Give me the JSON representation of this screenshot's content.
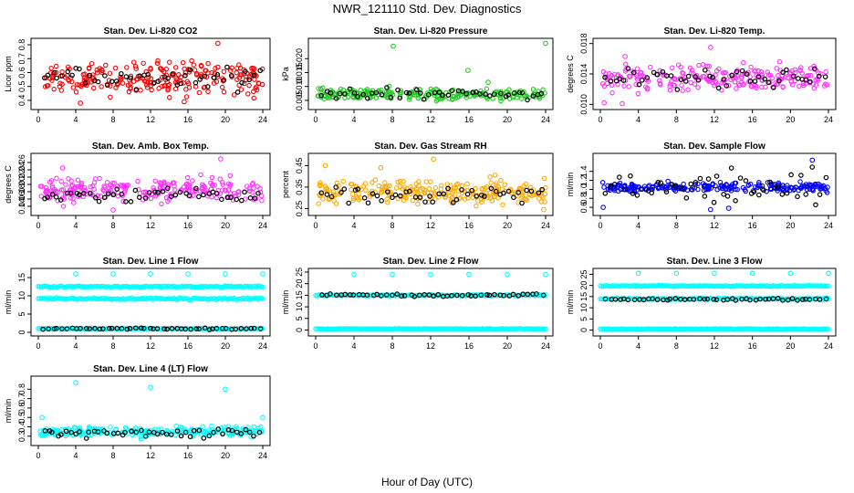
{
  "title": "NWR_121110  Std. Dev. Diagnostics",
  "xlabel": "Hour of Day (UTC)",
  "chart_data": [
    {
      "type": "scatter",
      "title": "Stan. Dev. Li-820 CO2",
      "ylabel": "Licor ppm",
      "xlim": [
        0,
        24
      ],
      "ylim": [
        0.36,
        0.82
      ],
      "xticks": [
        0,
        4,
        8,
        12,
        16,
        20,
        24
      ],
      "yticks": [
        0.4,
        0.5,
        0.6,
        0.7,
        0.8
      ],
      "ytick_labels": [
        "0.4",
        "0.5",
        "0.6",
        "0.7",
        "0.8"
      ],
      "color": "#ff0000",
      "base": 0.56,
      "spread": 0.08,
      "black_base": 0.56,
      "black_spread": 0.05,
      "outliers": [
        [
          19.2,
          0.81
        ],
        [
          4.5,
          0.38
        ],
        [
          15.6,
          0.39
        ]
      ]
    },
    {
      "type": "scatter",
      "title": "Stan. Dev. Li-820 Pressure",
      "ylabel": "kPa",
      "xlim": [
        0,
        24
      ],
      "ylim": [
        0.003,
        0.026
      ],
      "xticks": [
        0,
        4,
        8,
        12,
        16,
        20,
        24
      ],
      "yticks": [
        0.005,
        0.01,
        0.015,
        0.02
      ],
      "ytick_labels": [
        "0.005",
        "0.010",
        "0.015",
        "0.020"
      ],
      "color": "#22cc22",
      "base": 0.0072,
      "spread": 0.0015,
      "black_base": 0.0075,
      "black_spread": 0.0012,
      "outliers": [
        [
          8.1,
          0.0245
        ],
        [
          15.9,
          0.0158
        ],
        [
          24,
          0.0255
        ],
        [
          18.0,
          0.0115
        ]
      ]
    },
    {
      "type": "scatter",
      "title": "Stan. Dev. Li-820 Temp.",
      "ylabel": "degrees C",
      "xlim": [
        0,
        24
      ],
      "ylim": [
        0.0098,
        0.0182
      ],
      "xticks": [
        0,
        4,
        8,
        12,
        16,
        20,
        24
      ],
      "yticks": [
        0.01,
        0.014,
        0.018
      ],
      "ytick_labels": [
        "0.010",
        "0.014",
        "0.018"
      ],
      "color": "#ff33ff",
      "base": 0.0135,
      "spread": 0.0012,
      "black_base": 0.0135,
      "black_spread": 0.0008,
      "outliers": [
        [
          11.6,
          0.0175
        ],
        [
          2.3,
          0.0101
        ],
        [
          0.4,
          0.0102
        ],
        [
          2.6,
          0.0163
        ]
      ]
    },
    {
      "type": "scatter",
      "title": "Stan. Dev. Amb. Box Temp.",
      "ylabel": "degrees C",
      "xlim": [
        0,
        24
      ],
      "ylim": [
        0.125,
        0.275
      ],
      "xticks": [
        0,
        4,
        8,
        12,
        16,
        20,
        24
      ],
      "yticks": [
        0.14,
        0.16,
        0.18,
        0.2,
        0.22,
        0.24,
        0.26
      ],
      "ytick_labels": [
        "0.14",
        "0.16",
        "0.18",
        "0.20",
        "0.22",
        "0.24",
        "0.26"
      ],
      "color": "#ff33ff",
      "base": 0.185,
      "spread": 0.022,
      "black_base": 0.17,
      "black_spread": 0.015,
      "outliers": [
        [
          19.5,
          0.27
        ],
        [
          8.0,
          0.13
        ],
        [
          2.6,
          0.245
        ]
      ]
    },
    {
      "type": "scatter",
      "title": "Stan. Dev. Gas Stream RH",
      "ylabel": "percent",
      "xlim": [
        0,
        24
      ],
      "ylim": [
        0.235,
        0.49
      ],
      "xticks": [
        0,
        4,
        8,
        12,
        16,
        20,
        24
      ],
      "yticks": [
        0.25,
        0.35,
        0.45
      ],
      "ytick_labels": [
        "0.25",
        "0.35",
        "0.45"
      ],
      "color": "#ffaa00",
      "base": 0.33,
      "spread": 0.04,
      "black_base": 0.32,
      "black_spread": 0.03,
      "outliers": [
        [
          12.3,
          0.48
        ],
        [
          1.0,
          0.45
        ],
        [
          6.8,
          0.44
        ],
        [
          23.8,
          0.245
        ]
      ]
    },
    {
      "type": "scatter",
      "title": "Stan. Dev. Sample Flow",
      "ylabel": "ml/min",
      "xlim": [
        0,
        24
      ],
      "ylim": [
        0.5,
        1.72
      ],
      "xticks": [
        0,
        4,
        8,
        12,
        16,
        20,
        24
      ],
      "yticks": [
        0.6,
        0.8,
        1.0,
        1.2,
        1.4
      ],
      "ytick_labels": [
        "0.6",
        "0.8",
        "1.0",
        "1.2",
        "1.4"
      ],
      "color": "#0000ff",
      "base": 1.05,
      "spread": 0.07,
      "black_base": 1.05,
      "black_spread": 0.25,
      "outliers": [
        [
          22.3,
          1.65
        ],
        [
          0.3,
          0.6
        ],
        [
          11.6,
          0.55
        ],
        [
          13.5,
          0.58
        ]
      ]
    },
    {
      "type": "scatter",
      "title": "Stan. Dev. Line 1 Flow",
      "ylabel": "ml/min",
      "xlim": [
        0,
        24
      ],
      "ylim": [
        0,
        16.5
      ],
      "xticks": [
        0,
        4,
        8,
        12,
        16,
        20,
        24
      ],
      "yticks": [
        0,
        5,
        10,
        15
      ],
      "ytick_labels": [
        "0",
        "5",
        "10",
        "15"
      ],
      "color": "#00ffff",
      "bands": [
        [
          12.5,
          0.3
        ],
        [
          9.2,
          0.35
        ],
        [
          1.0,
          0.15
        ]
      ],
      "black_base": 1.0,
      "black_spread": 0.15,
      "outliers": [
        [
          4,
          16
        ],
        [
          8,
          16
        ],
        [
          12,
          16
        ],
        [
          16,
          16
        ],
        [
          20,
          16
        ],
        [
          24,
          16
        ]
      ]
    },
    {
      "type": "scatter",
      "title": "Stan. Dev. Line 2 Flow",
      "ylabel": "ml/min",
      "xlim": [
        0,
        24
      ],
      "ylim": [
        -1,
        25
      ],
      "xticks": [
        0,
        4,
        8,
        12,
        16,
        20,
        24
      ],
      "yticks": [
        0,
        5,
        10,
        15,
        20,
        25
      ],
      "ytick_labels": [
        "0",
        "5",
        "10",
        "15",
        "20",
        "25"
      ],
      "color": "#00ffff",
      "bands": [
        [
          15.0,
          0.4
        ],
        [
          0.5,
          0.2
        ]
      ],
      "black_base": 15.0,
      "black_spread": 0.4,
      "outliers": [
        [
          4,
          24
        ],
        [
          8,
          24
        ],
        [
          12,
          24
        ],
        [
          16,
          24
        ],
        [
          20,
          24
        ],
        [
          24,
          24
        ]
      ]
    },
    {
      "type": "scatter",
      "title": "Stan. Dev. Line 3 Flow",
      "ylabel": "ml/min",
      "xlim": [
        0,
        24
      ],
      "ylim": [
        -1,
        26
      ],
      "xticks": [
        0,
        4,
        8,
        12,
        16,
        20,
        24
      ],
      "yticks": [
        0,
        5,
        10,
        15,
        20,
        25
      ],
      "ytick_labels": [
        "0",
        "5",
        "10",
        "15",
        "20",
        "25"
      ],
      "color": "#00ffff",
      "bands": [
        [
          19.8,
          0.35
        ],
        [
          14.0,
          0.5
        ],
        [
          0.5,
          0.2
        ]
      ],
      "black_base": 13.8,
      "black_spread": 0.4,
      "outliers": [
        [
          4,
          25.5
        ],
        [
          8,
          25.5
        ],
        [
          12,
          25.5
        ],
        [
          16,
          25.5
        ],
        [
          20,
          25.5
        ],
        [
          24,
          25.5
        ]
      ]
    },
    {
      "type": "scatter",
      "title": "Stan. Dev. Line 4 (LT) Flow",
      "ylabel": "ml/min",
      "xlim": [
        0,
        24
      ],
      "ylim": [
        0.24,
        0.9
      ],
      "xticks": [
        0,
        4,
        8,
        12,
        16,
        20,
        24
      ],
      "yticks": [
        0.3,
        0.4,
        0.5,
        0.6,
        0.7,
        0.8
      ],
      "ytick_labels": [
        "0.3",
        "0.4",
        "0.5",
        "0.6",
        "0.7",
        "0.8"
      ],
      "color": "#00ffff",
      "base": 0.35,
      "spread": 0.035,
      "black_base": 0.33,
      "black_spread": 0.03,
      "outliers": [
        [
          4,
          0.87
        ],
        [
          12,
          0.82
        ],
        [
          20,
          0.8
        ],
        [
          0.4,
          0.5
        ],
        [
          24,
          0.5
        ],
        [
          11.0,
          0.27
        ]
      ]
    }
  ]
}
